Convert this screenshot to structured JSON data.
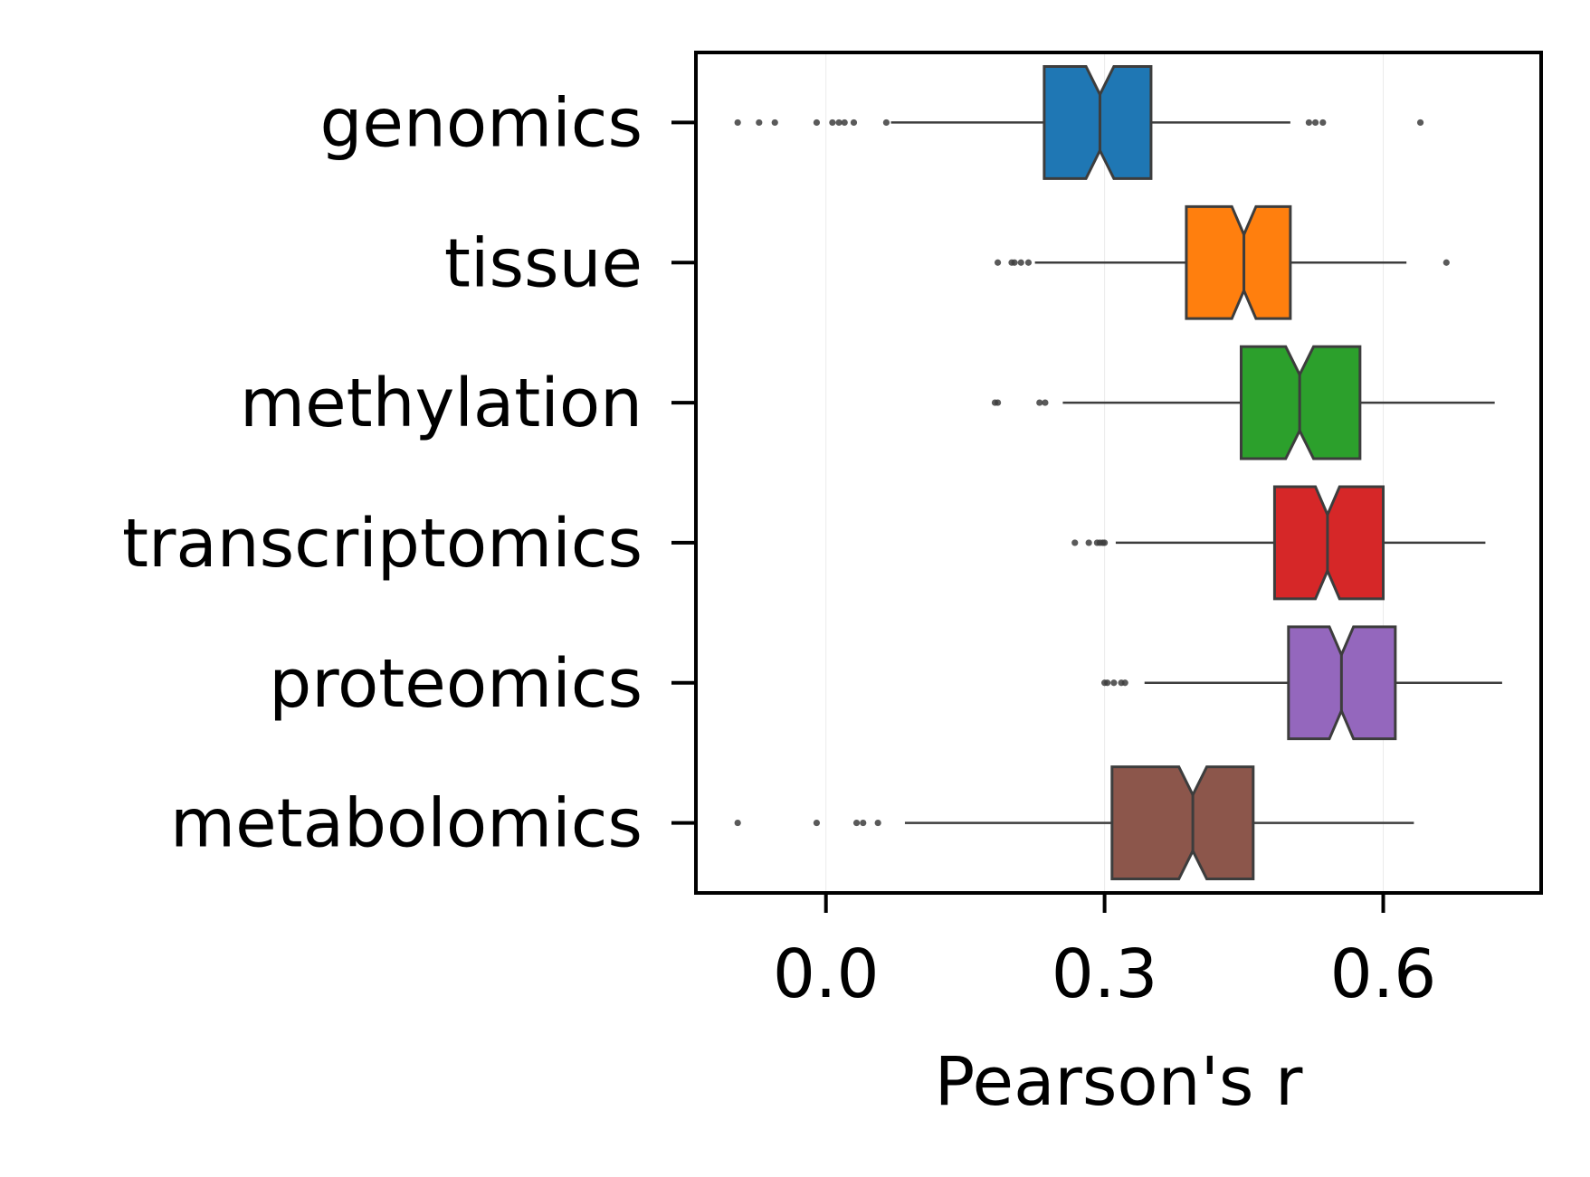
{
  "chart_data": {
    "type": "boxplot",
    "orientation": "horizontal",
    "notched": true,
    "xlabel": "Pearson's r",
    "xlim": [
      -0.14,
      0.77
    ],
    "xticks": [
      0.0,
      0.3,
      0.6
    ],
    "xtick_labels": [
      "0.0",
      "0.3",
      "0.6"
    ],
    "grid": "vertical gridlines at x ticks",
    "categories": [
      "genomics",
      "tissue",
      "methylation",
      "transcriptomics",
      "proteomics",
      "metabolomics"
    ],
    "series": [
      {
        "category": "genomics",
        "color": "#1f77b4",
        "whisker_low": 0.07,
        "q1": 0.235,
        "median": 0.295,
        "q3": 0.35,
        "whisker_high": 0.5,
        "notch_low": 0.28,
        "notch_high": 0.31,
        "outliers": [
          -0.095,
          -0.072,
          -0.055,
          -0.01,
          0.007,
          0.014,
          0.02,
          0.03,
          0.065,
          0.52,
          0.527,
          0.535,
          0.64
        ]
      },
      {
        "category": "tissue",
        "color": "#ff7f0e",
        "whisker_low": 0.225,
        "q1": 0.388,
        "median": 0.45,
        "q3": 0.5,
        "whisker_high": 0.625,
        "notch_low": 0.437,
        "notch_high": 0.463,
        "outliers": [
          0.185,
          0.2,
          0.203,
          0.21,
          0.218,
          0.668
        ]
      },
      {
        "category": "methylation",
        "color": "#2ca02c",
        "whisker_low": 0.255,
        "q1": 0.447,
        "median": 0.51,
        "q3": 0.575,
        "whisker_high": 0.72,
        "notch_low": 0.495,
        "notch_high": 0.525,
        "outliers": [
          0.182,
          0.185,
          0.23,
          0.236
        ]
      },
      {
        "category": "transcriptomics",
        "color": "#d62728",
        "whisker_low": 0.312,
        "q1": 0.483,
        "median": 0.54,
        "q3": 0.6,
        "whisker_high": 0.71,
        "notch_low": 0.527,
        "notch_high": 0.553,
        "outliers": [
          0.268,
          0.283,
          0.292,
          0.295,
          0.298,
          0.3
        ]
      },
      {
        "category": "proteomics",
        "color": "#9467bd",
        "whisker_low": 0.343,
        "q1": 0.498,
        "median": 0.555,
        "q3": 0.613,
        "whisker_high": 0.728,
        "notch_low": 0.542,
        "notch_high": 0.568,
        "outliers": [
          0.3,
          0.303,
          0.31,
          0.318,
          0.322
        ]
      },
      {
        "category": "metabolomics",
        "color": "#8c564b",
        "whisker_low": 0.085,
        "q1": 0.308,
        "median": 0.395,
        "q3": 0.46,
        "whisker_high": 0.633,
        "notch_low": 0.38,
        "notch_high": 0.41,
        "outliers": [
          -0.095,
          -0.01,
          0.033,
          0.04,
          0.056
        ]
      }
    ]
  }
}
